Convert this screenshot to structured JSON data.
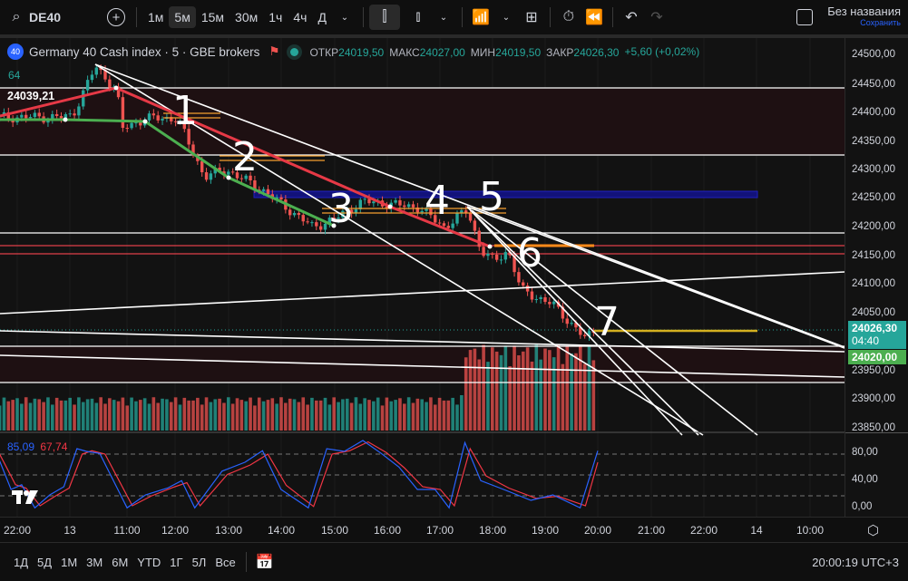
{
  "toolbar": {
    "symbol": "DE40",
    "intervals": [
      "1м",
      "5м",
      "15м",
      "30м",
      "1ч",
      "4ч",
      "Д"
    ],
    "active_interval": "5м",
    "layout_name": "Без названия",
    "save_label": "Сохранить"
  },
  "legend": {
    "badge": "40",
    "title": "Germany 40 Cash index · 5 · GBE brokers",
    "open_label": "ОТКР",
    "open": "24019,50",
    "high_label": "МАКС",
    "high": "24027,00",
    "low_label": "МИН",
    "low": "24019,50",
    "close_label": "ЗАКР",
    "close": "24026,30",
    "change": "+5,60 (+0,02%)",
    "volume_value": "64",
    "level_label": "24039,21"
  },
  "colors": {
    "up": "#26a69a",
    "down": "#ef5350",
    "accent": "#2962ff",
    "stoch_k": "#2962ff",
    "stoch_d": "#f23645"
  },
  "price_axis": {
    "ticks": [
      "24500,00",
      "24450,00",
      "24400,00",
      "24350,00",
      "24300,00",
      "24250,00",
      "24200,00",
      "24150,00",
      "24100,00",
      "24050,00",
      "23950,00",
      "23900,00",
      "23850,00"
    ],
    "last_price": "24026,30",
    "countdown": "04:40",
    "level_price": "24020,00"
  },
  "stoch_axis": {
    "ticks": [
      "80,00",
      "40,00",
      "0,00"
    ],
    "k_value": "85,09",
    "d_value": "67,74"
  },
  "time_axis": {
    "ticks": [
      "22:00",
      "13",
      "11:00",
      "12:00",
      "13:00",
      "14:00",
      "15:00",
      "16:00",
      "17:00",
      "18:00",
      "19:00",
      "20:00",
      "21:00",
      "22:00",
      "14",
      "10:00"
    ]
  },
  "annotations": [
    "1",
    "2",
    "3",
    "4",
    "5",
    "6",
    "7"
  ],
  "range_buttons": [
    "1Д",
    "5Д",
    "1М",
    "3М",
    "6М",
    "YTD",
    "1Г",
    "5Л",
    "Все"
  ],
  "clock": "20:00:19 UTC+3",
  "chart_data": {
    "type": "candlestick",
    "price_path": [
      [
        "21:40",
        24392
      ],
      [
        "22:00",
        24392
      ],
      [
        "22:53",
        24392
      ],
      [
        "10:03",
        24395
      ],
      [
        "10:29",
        24480
      ],
      [
        "10:53",
        24440
      ],
      [
        "11:00",
        24372
      ],
      [
        "11:26",
        24390
      ],
      [
        "12:02",
        24390
      ],
      [
        "12:33",
        24288
      ],
      [
        "12:58",
        24300
      ],
      [
        "13:39",
        24265
      ],
      [
        "14:36",
        24200
      ],
      [
        "15:02",
        24215
      ],
      [
        "15:33",
        24245
      ],
      [
        "16:35",
        24235
      ],
      [
        "17:06",
        24200
      ],
      [
        "17:32",
        24230
      ],
      [
        "17:47",
        24160
      ],
      [
        "18:02",
        24140
      ],
      [
        "18:18",
        24160
      ],
      [
        "18:33",
        24090
      ],
      [
        "19:09",
        24065
      ],
      [
        "19:46",
        24005
      ],
      [
        "20:00",
        24026
      ]
    ],
    "volume_relative": [
      [
        "21:40",
        0.35
      ],
      [
        "17:25",
        0.35
      ],
      [
        "17:30",
        0.9
      ],
      [
        "19:55",
        0.9
      ],
      [
        "20:00",
        0.05
      ]
    ],
    "stoch_k": [
      [
        "21:40",
        70
      ],
      [
        "21:53",
        28
      ],
      [
        "22:05",
        35
      ],
      [
        "22:20",
        1
      ],
      [
        "22:37",
        20
      ],
      [
        "22:53",
        32
      ],
      [
        "10:08",
        88
      ],
      [
        "10:19",
        84
      ],
      [
        "10:34",
        81
      ],
      [
        "11:05",
        1
      ],
      [
        "11:26",
        20
      ],
      [
        "11:51",
        30
      ],
      [
        "12:07",
        41
      ],
      [
        "12:22",
        1
      ],
      [
        "12:53",
        55
      ],
      [
        "13:19",
        68
      ],
      [
        "13:39",
        85
      ],
      [
        "14:00",
        28
      ],
      [
        "14:31",
        1
      ],
      [
        "14:52",
        88
      ],
      [
        "15:12",
        84
      ],
      [
        "15:33",
        100
      ],
      [
        "15:54",
        81
      ],
      [
        "16:14",
        61
      ],
      [
        "16:35",
        28
      ],
      [
        "16:55",
        28
      ],
      [
        "17:11",
        1
      ],
      [
        "17:29",
        97
      ],
      [
        "17:47",
        41
      ],
      [
        "18:13",
        28
      ],
      [
        "18:44",
        12
      ],
      [
        "19:09",
        20
      ],
      [
        "19:40",
        1
      ],
      [
        "20:00",
        85
      ]
    ],
    "stoch_d": [
      [
        "21:40",
        80
      ],
      [
        "21:58",
        35
      ],
      [
        "22:10",
        30
      ],
      [
        "22:26",
        4
      ],
      [
        "22:43",
        18
      ],
      [
        "22:59",
        30
      ],
      [
        "10:14",
        80
      ],
      [
        "10:25",
        85
      ],
      [
        "10:40",
        80
      ],
      [
        "11:11",
        4
      ],
      [
        "11:32",
        18
      ],
      [
        "11:57",
        31
      ],
      [
        "12:13",
        38
      ],
      [
        "12:28",
        4
      ],
      [
        "12:59",
        50
      ],
      [
        "13:25",
        64
      ],
      [
        "13:45",
        80
      ],
      [
        "14:06",
        34
      ],
      [
        "14:37",
        3
      ],
      [
        "14:58",
        80
      ],
      [
        "15:18",
        85
      ],
      [
        "15:39",
        98
      ],
      [
        "16:00",
        82
      ],
      [
        "16:20",
        60
      ],
      [
        "16:41",
        32
      ],
      [
        "17:01",
        28
      ],
      [
        "17:17",
        4
      ],
      [
        "17:35",
        88
      ],
      [
        "17:53",
        48
      ],
      [
        "18:19",
        30
      ],
      [
        "18:50",
        15
      ],
      [
        "19:15",
        18
      ],
      [
        "19:46",
        4
      ],
      [
        "20:00",
        68
      ]
    ]
  }
}
